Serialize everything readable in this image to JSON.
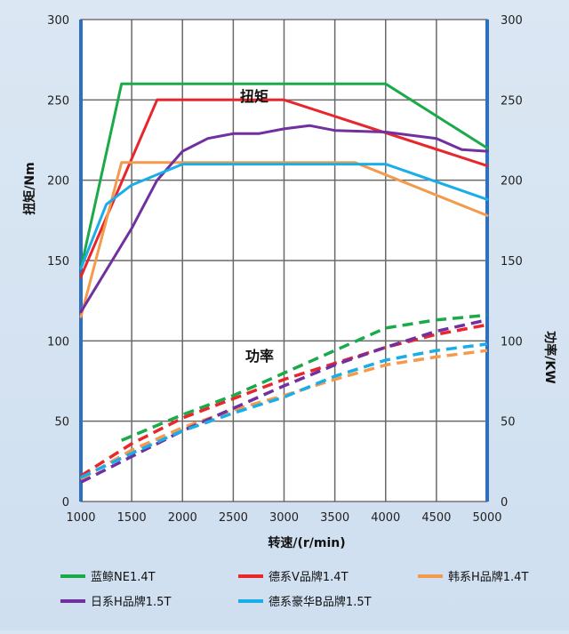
{
  "chart_data": {
    "type": "line",
    "xlabel": "转速/(r/min)",
    "ylabel_left": "扭矩/Nm",
    "ylabel_right": "功率/KW",
    "xlim": [
      1000,
      5000
    ],
    "ylim": [
      0,
      300
    ],
    "xticks": [
      1000,
      1500,
      2000,
      2500,
      3000,
      3500,
      4000,
      4500,
      5000
    ],
    "yticks": [
      0,
      50,
      100,
      150,
      200,
      250,
      300
    ],
    "annotations": [
      "扭矩",
      "功率"
    ],
    "grid": true,
    "legend_position": "bottom",
    "series": [
      {
        "name": "蓝鲸NE1.4T",
        "color": "#1aaa4a",
        "torque": {
          "x": [
            1000,
            1400,
            4000,
            5000
          ],
          "y": [
            145,
            260,
            260,
            220
          ]
        },
        "power": {
          "x": [
            1400,
            2000,
            2500,
            3000,
            3500,
            4000,
            4500,
            5000
          ],
          "y": [
            38,
            54,
            66,
            80,
            94,
            108,
            113,
            116
          ]
        }
      },
      {
        "name": "德系V品牌1.4T",
        "color": "#e8262b",
        "torque": {
          "x": [
            1000,
            1750,
            3000,
            5000
          ],
          "y": [
            140,
            250,
            250,
            209
          ]
        },
        "power": {
          "x": [
            1000,
            1500,
            2000,
            2500,
            3000,
            3500,
            4000,
            4500,
            5000
          ],
          "y": [
            16,
            36,
            52,
            64,
            76,
            86,
            96,
            104,
            110
          ]
        }
      },
      {
        "name": "韩系H品牌1.4T",
        "color": "#f39a4c",
        "torque": {
          "x": [
            1000,
            1400,
            3700,
            5000
          ],
          "y": [
            115,
            211,
            211,
            178
          ]
        },
        "power": {
          "x": [
            1000,
            1500,
            2000,
            2500,
            3000,
            3500,
            4000,
            4500,
            5000
          ],
          "y": [
            14,
            32,
            46,
            57,
            66,
            76,
            85,
            90,
            94
          ]
        }
      },
      {
        "name": "日系H品牌1.5T",
        "color": "#7030a0",
        "torque": {
          "x": [
            1000,
            1500,
            1750,
            2000,
            2250,
            2500,
            2750,
            3000,
            3250,
            3500,
            4000,
            4500,
            4750,
            5000
          ],
          "y": [
            118,
            170,
            200,
            218,
            226,
            229,
            229,
            232,
            234,
            231,
            230,
            226,
            219,
            218
          ]
        },
        "power": {
          "x": [
            1000,
            1500,
            2000,
            2500,
            3000,
            3500,
            4000,
            4500,
            5000
          ],
          "y": [
            12,
            28,
            44,
            58,
            72,
            85,
            96,
            106,
            113
          ]
        }
      },
      {
        "name": "德系豪华B品牌1.5T",
        "color": "#1aaee8",
        "torque": {
          "x": [
            1000,
            1250,
            1500,
            2000,
            4000,
            5000
          ],
          "y": [
            145,
            185,
            197,
            210,
            210,
            188
          ]
        },
        "power": {
          "x": [
            1000,
            1500,
            2000,
            2500,
            3000,
            3500,
            4000,
            4500,
            5000
          ],
          "y": [
            15,
            30,
            44,
            55,
            65,
            78,
            88,
            94,
            98
          ]
        }
      }
    ]
  }
}
